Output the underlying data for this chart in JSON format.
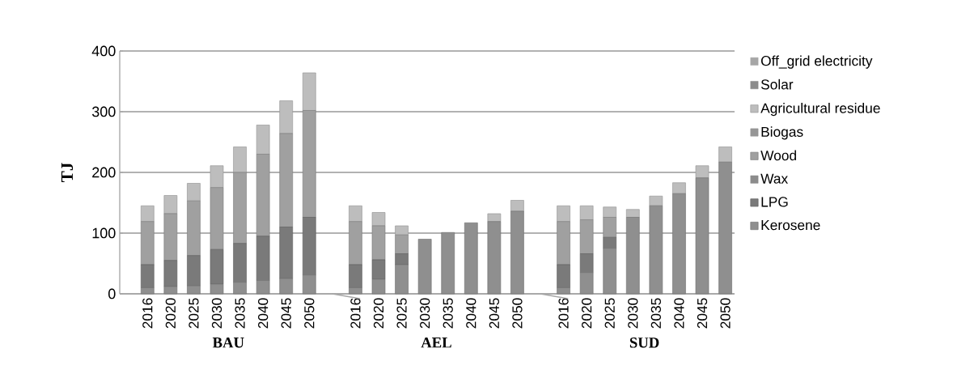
{
  "chart_data": {
    "type": "bar",
    "stacked": true,
    "ylabel": "TJ",
    "categories": [
      "2016",
      "2020",
      "2025",
      "2030",
      "2035",
      "2040",
      "2045",
      "2050",
      null,
      "2016",
      "2020",
      "2025",
      "2030",
      "2035",
      "2040",
      "2045",
      "2050",
      null,
      "2016",
      "2020",
      "2025",
      "2030",
      "2035",
      "2040",
      "2045",
      "2050"
    ],
    "series": [
      {
        "name": "Kerosene",
        "color": "#8f8f8f",
        "values": [
          10,
          12,
          13,
          16,
          19,
          22,
          25,
          31,
          null,
          10,
          24,
          48,
          90,
          101,
          117,
          119,
          136,
          null,
          10,
          35,
          75,
          126,
          145,
          165,
          191,
          217
        ]
      },
      {
        "name": "LPG",
        "color": "#7a7a7a",
        "values": [
          38,
          43,
          50,
          57,
          64,
          73,
          85,
          95,
          null,
          38,
          32,
          18,
          null,
          null,
          null,
          null,
          null,
          null,
          38,
          31,
          18,
          null,
          null,
          null,
          null,
          null
        ]
      },
      {
        "name": "Wax",
        "color": "#8c8c8c",
        "values": [
          null,
          null,
          null,
          null,
          null,
          null,
          null,
          null,
          null,
          null,
          null,
          null,
          null,
          null,
          null,
          null,
          null,
          null,
          null,
          null,
          null,
          null,
          null,
          null,
          null,
          null
        ]
      },
      {
        "name": "Wood",
        "color": "#a0a0a0",
        "values": [
          71,
          77,
          90,
          102,
          117,
          135,
          154,
          176,
          null,
          71,
          56,
          31,
          null,
          null,
          null,
          null,
          null,
          null,
          71,
          56,
          33,
          null,
          null,
          null,
          null,
          null
        ]
      },
      {
        "name": "Biogas",
        "color": "#969696",
        "values": [
          null,
          null,
          null,
          null,
          null,
          null,
          null,
          null,
          null,
          null,
          null,
          null,
          null,
          null,
          null,
          null,
          null,
          null,
          null,
          null,
          null,
          null,
          null,
          null,
          null,
          null
        ]
      },
      {
        "name": "Agricultural residue",
        "color": "#bdbdbd",
        "values": [
          26,
          30,
          29,
          36,
          42,
          48,
          54,
          62,
          null,
          26,
          22,
          15,
          null,
          null,
          null,
          13,
          18,
          null,
          26,
          23,
          17,
          13,
          16,
          18,
          20,
          25
        ]
      },
      {
        "name": "Solar",
        "color": "#8c8c8c",
        "values": [
          null,
          null,
          null,
          null,
          null,
          null,
          null,
          null,
          null,
          null,
          null,
          null,
          null,
          null,
          null,
          null,
          null,
          null,
          null,
          null,
          null,
          null,
          null,
          null,
          null,
          null
        ]
      },
      {
        "name": "Off_grid electricity",
        "color": "#a6a6a6",
        "values": [
          null,
          null,
          null,
          null,
          null,
          null,
          null,
          null,
          null,
          null,
          null,
          null,
          null,
          null,
          null,
          null,
          null,
          null,
          null,
          null,
          null,
          null,
          null,
          null,
          null,
          null
        ]
      }
    ],
    "ylim": [
      0,
      400
    ],
    "yticks": [
      0,
      100,
      200,
      300,
      400
    ],
    "grid": "y",
    "legend": "right",
    "annotations": [
      "BAU",
      "AEL",
      "SUD"
    ]
  }
}
